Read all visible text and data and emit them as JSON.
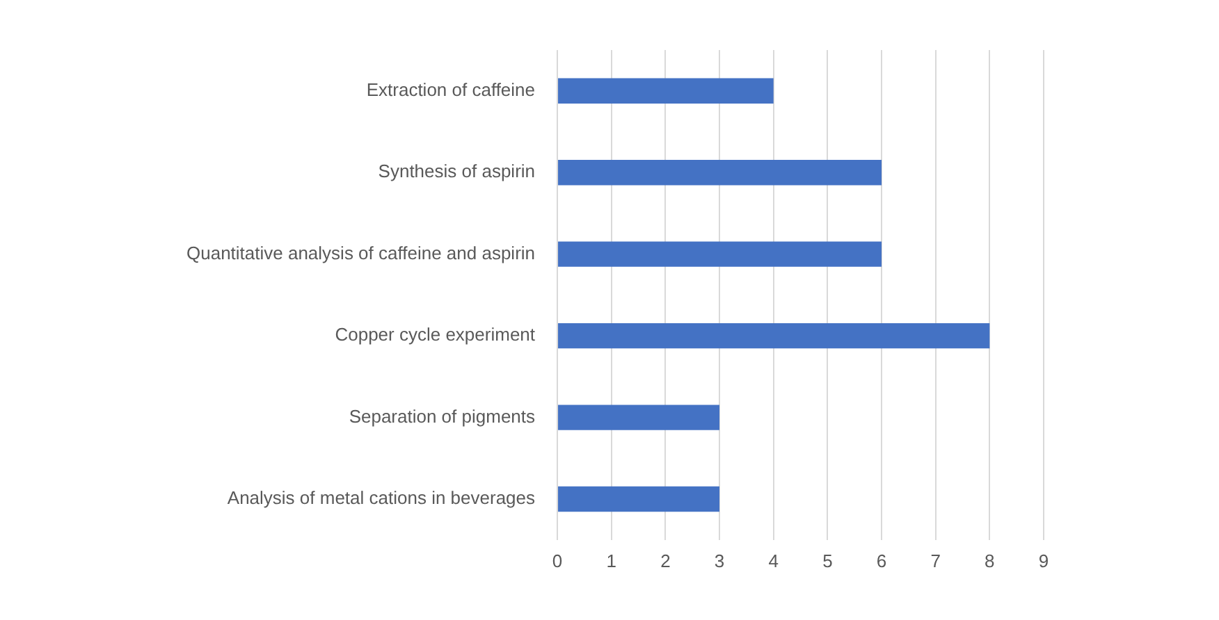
{
  "chart_data": {
    "type": "bar",
    "orientation": "horizontal",
    "categories": [
      "Extraction of caffeine",
      "Synthesis of aspirin",
      "Quantitative analysis of caffeine and aspirin",
      "Copper cycle experiment",
      "Separation of pigments",
      "Analysis of metal cations in beverages"
    ],
    "values": [
      4,
      6,
      6,
      8,
      3,
      3
    ],
    "color": "#4472c4",
    "xlim": [
      0,
      9
    ],
    "xticks": [
      0,
      1,
      2,
      3,
      4,
      5,
      6,
      7,
      8,
      9
    ],
    "grid": "x",
    "legend": false
  }
}
